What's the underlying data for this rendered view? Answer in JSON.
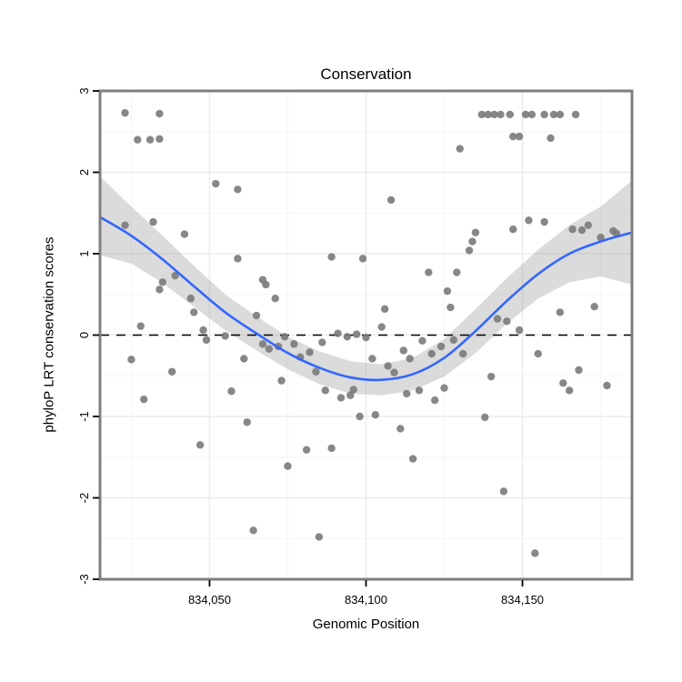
{
  "chart_data": {
    "type": "scatter",
    "title": "Conservation",
    "xlabel": "Genomic Position",
    "ylabel": "phyloP LRT conservation scores",
    "xlim": [
      834015,
      834185
    ],
    "ylim": [
      -3,
      3
    ],
    "grid": true,
    "legend": "none",
    "x_ticks": [
      {
        "value": 834050,
        "label": "834,050"
      },
      {
        "value": 834100,
        "label": "834,100"
      },
      {
        "value": 834150,
        "label": "834,150"
      }
    ],
    "y_ticks": [
      {
        "value": 3,
        "label": "3"
      },
      {
        "value": 2,
        "label": "2"
      },
      {
        "value": 1,
        "label": "1"
      },
      {
        "value": 0,
        "label": "0"
      },
      {
        "value": -1,
        "label": "-1"
      },
      {
        "value": -2,
        "label": "-2"
      },
      {
        "value": -3,
        "label": "-3"
      }
    ],
    "x_minor": [
      834025,
      834075,
      834125,
      834175
    ],
    "y_minor": [
      -2.5,
      -1.5,
      -0.5,
      0.5,
      1.5,
      2.5
    ],
    "zero_line": {
      "y": 0,
      "style": "dashed",
      "color": "#000000"
    },
    "point_style": {
      "color": "#7a7a7a",
      "radius": 4.2,
      "opacity": 0.9
    },
    "panel": {
      "background": "#ffffff",
      "border_color": "#7f7f7f",
      "grid_major_color": "#ececec",
      "grid_minor_color": "#f5f5f5"
    },
    "points": [
      [
        834023,
        2.73
      ],
      [
        834034,
        2.72
      ],
      [
        834027,
        2.4
      ],
      [
        834031,
        2.4
      ],
      [
        834034,
        2.41
      ],
      [
        834023,
        1.35
      ],
      [
        834032,
        1.39
      ],
      [
        834025,
        -0.3
      ],
      [
        834028,
        0.11
      ],
      [
        834029,
        -0.79
      ],
      [
        834034,
        0.56
      ],
      [
        834035,
        0.65
      ],
      [
        834039,
        0.73
      ],
      [
        834038,
        -0.45
      ],
      [
        834042,
        1.24
      ],
      [
        834044,
        0.45
      ],
      [
        834045,
        0.28
      ],
      [
        834047,
        -1.35
      ],
      [
        834048,
        0.06
      ],
      [
        834049,
        -0.06
      ],
      [
        834052,
        1.86
      ],
      [
        834055,
        -0.01
      ],
      [
        834057,
        -0.69
      ],
      [
        834059,
        1.79
      ],
      [
        834059,
        0.94
      ],
      [
        834061,
        -0.29
      ],
      [
        834062,
        -1.07
      ],
      [
        834064,
        -2.4
      ],
      [
        834065,
        0.24
      ],
      [
        834067,
        0.68
      ],
      [
        834067,
        -0.11
      ],
      [
        834068,
        0.62
      ],
      [
        834069,
        -0.17
      ],
      [
        834071,
        0.45
      ],
      [
        834072,
        -0.14
      ],
      [
        834073,
        -0.56
      ],
      [
        834074,
        -0.02
      ],
      [
        834075,
        -1.61
      ],
      [
        834077,
        -0.11
      ],
      [
        834079,
        -0.27
      ],
      [
        834081,
        -1.41
      ],
      [
        834082,
        -0.21
      ],
      [
        834084,
        -0.45
      ],
      [
        834085,
        -2.48
      ],
      [
        834086,
        -0.09
      ],
      [
        834087,
        -0.68
      ],
      [
        834089,
        0.96
      ],
      [
        834089,
        -1.39
      ],
      [
        834091,
        0.02
      ],
      [
        834092,
        -0.77
      ],
      [
        834094,
        -0.02
      ],
      [
        834095,
        -0.74
      ],
      [
        834096,
        -0.67
      ],
      [
        834097,
        0.01
      ],
      [
        834098,
        -1.0
      ],
      [
        834099,
        0.94
      ],
      [
        834100,
        -0.03
      ],
      [
        834102,
        -0.29
      ],
      [
        834103,
        -0.98
      ],
      [
        834105,
        0.1
      ],
      [
        834106,
        0.32
      ],
      [
        834107,
        -0.38
      ],
      [
        834108,
        1.66
      ],
      [
        834109,
        -0.46
      ],
      [
        834111,
        -1.15
      ],
      [
        834112,
        -0.19
      ],
      [
        834113,
        -0.72
      ],
      [
        834114,
        -0.29
      ],
      [
        834115,
        -1.52
      ],
      [
        834117,
        -0.68
      ],
      [
        834118,
        -0.07
      ],
      [
        834120,
        0.77
      ],
      [
        834121,
        -0.23
      ],
      [
        834122,
        -0.8
      ],
      [
        834124,
        -0.14
      ],
      [
        834125,
        -0.65
      ],
      [
        834126,
        0.54
      ],
      [
        834127,
        0.34
      ],
      [
        834128,
        -0.06
      ],
      [
        834129,
        0.77
      ],
      [
        834130,
        2.29
      ],
      [
        834131,
        -0.23
      ],
      [
        834133,
        1.04
      ],
      [
        834134,
        1.15
      ],
      [
        834135,
        1.26
      ],
      [
        834137,
        2.71
      ],
      [
        834138,
        -1.01
      ],
      [
        834139,
        2.71
      ],
      [
        834140,
        -0.51
      ],
      [
        834141,
        2.71
      ],
      [
        834142,
        0.2
      ],
      [
        834143,
        2.71
      ],
      [
        834144,
        -1.92
      ],
      [
        834145,
        0.17
      ],
      [
        834146,
        2.71
      ],
      [
        834147,
        1.3
      ],
      [
        834147,
        2.44
      ],
      [
        834149,
        2.44
      ],
      [
        834149,
        0.06
      ],
      [
        834151,
        2.71
      ],
      [
        834152,
        1.41
      ],
      [
        834153,
        2.71
      ],
      [
        834154,
        -2.68
      ],
      [
        834155,
        -0.23
      ],
      [
        834157,
        1.39
      ],
      [
        834157,
        2.71
      ],
      [
        834159,
        2.42
      ],
      [
        834160,
        2.71
      ],
      [
        834162,
        2.71
      ],
      [
        834162,
        0.28
      ],
      [
        834163,
        -0.59
      ],
      [
        834165,
        -0.68
      ],
      [
        834166,
        1.3
      ],
      [
        834167,
        2.71
      ],
      [
        834168,
        -0.43
      ],
      [
        834169,
        1.29
      ],
      [
        834171,
        1.35
      ],
      [
        834173,
        0.35
      ],
      [
        834175,
        1.2
      ],
      [
        834177,
        -0.62
      ],
      [
        834179,
        1.28
      ],
      [
        834180,
        1.25
      ]
    ],
    "smooth": {
      "name": "loess-fit",
      "color": "#3366FF",
      "width": 2.6,
      "x": [
        834015,
        834025,
        834035,
        834045,
        834055,
        834065,
        834075,
        834085,
        834095,
        834105,
        834115,
        834125,
        834135,
        834145,
        834155,
        834165,
        834175,
        834185
      ],
      "y": [
        1.45,
        1.22,
        0.93,
        0.6,
        0.28,
        0.02,
        -0.22,
        -0.4,
        -0.52,
        -0.55,
        -0.48,
        -0.28,
        0.05,
        0.42,
        0.75,
        1.0,
        1.15,
        1.26
      ]
    },
    "ribbon": {
      "name": "confidence-band",
      "color": "#999999",
      "opacity": 0.35,
      "x": [
        834015,
        834025,
        834035,
        834045,
        834055,
        834065,
        834075,
        834085,
        834095,
        834105,
        834115,
        834125,
        834135,
        834145,
        834155,
        834165,
        834175,
        834185
      ],
      "upper": [
        1.95,
        1.58,
        1.22,
        0.85,
        0.5,
        0.23,
        -0.02,
        -0.2,
        -0.32,
        -0.36,
        -0.28,
        -0.05,
        0.32,
        0.7,
        1.05,
        1.35,
        1.58,
        1.9
      ],
      "lower": [
        0.98,
        0.88,
        0.64,
        0.35,
        0.06,
        -0.19,
        -0.42,
        -0.6,
        -0.72,
        -0.74,
        -0.68,
        -0.51,
        -0.22,
        0.14,
        0.45,
        0.65,
        0.72,
        0.62
      ]
    }
  }
}
